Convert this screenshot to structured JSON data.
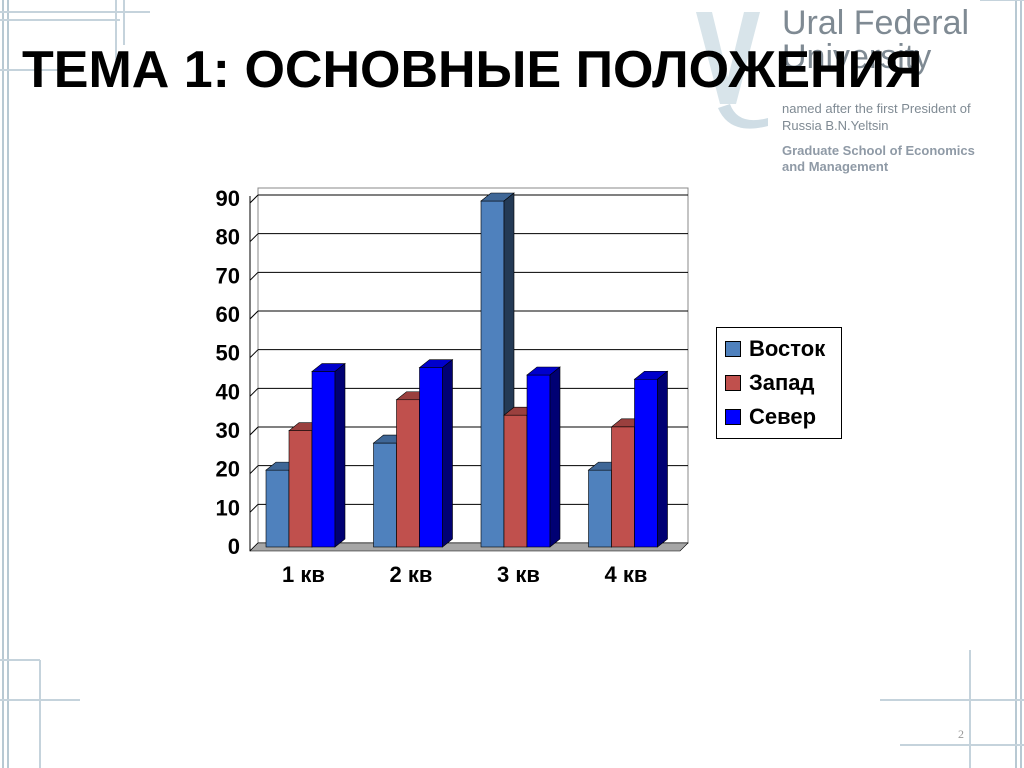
{
  "slide": {
    "title": "ТЕМА 1: ОСНОВНЫЕ ПОЛОЖЕНИЯ",
    "page_number": "2"
  },
  "logo": {
    "name": "Ural Federal University",
    "subtitle": "named after the first President of Russia B.N.Yeltsin",
    "school": "Graduate School of Economics and Management"
  },
  "colors": {
    "vostok": "#4f81bd",
    "zapad": "#c0504d",
    "sever": "#0000ff",
    "frame": "#b8c9d3"
  },
  "chart_data": {
    "type": "bar",
    "categories": [
      "1 кв",
      "2 кв",
      "3 кв",
      "4 кв"
    ],
    "series": [
      {
        "name": "Восток",
        "values": [
          20.4,
          27.4,
          90,
          20.4
        ]
      },
      {
        "name": "Запад",
        "values": [
          30.6,
          38.6,
          34.6,
          31.6
        ]
      },
      {
        "name": "Север",
        "values": [
          45.9,
          46.9,
          45,
          43.9
        ]
      }
    ],
    "ylim": [
      0,
      90
    ],
    "yticks": [
      "0",
      "10",
      "20",
      "30",
      "40",
      "50",
      "60",
      "70",
      "80",
      "90"
    ],
    "grid": true,
    "legend_position": "right",
    "three_d": true
  }
}
